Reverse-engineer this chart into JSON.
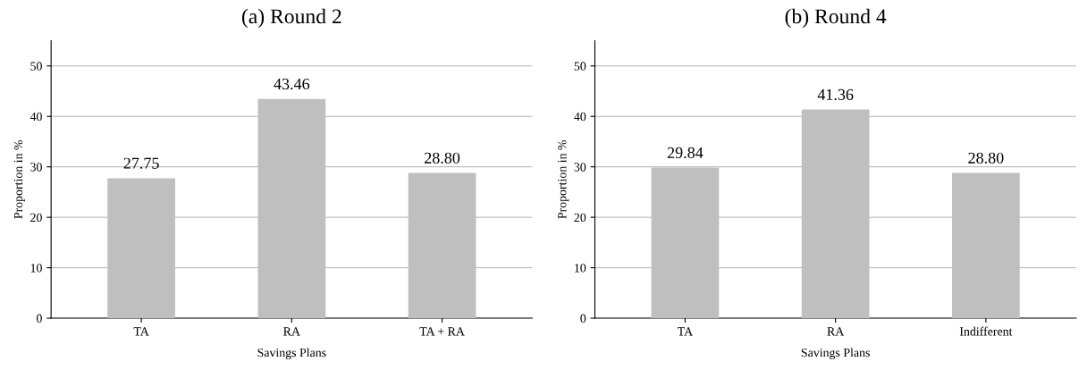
{
  "chart_data": [
    {
      "type": "bar",
      "title": "(a) Round 2",
      "xlabel": "Savings Plans",
      "ylabel": "Proportion in %",
      "categories": [
        "TA",
        "RA",
        "TA + RA"
      ],
      "values": [
        27.75,
        43.46,
        28.8
      ],
      "value_labels": [
        "27.75",
        "43.46",
        "28.80"
      ],
      "color": "#bfbfbf",
      "ylim": [
        0,
        55
      ],
      "yticks": [
        0,
        10,
        20,
        30,
        40,
        50
      ],
      "grid": "y"
    },
    {
      "type": "bar",
      "title": "(b) Round 4",
      "xlabel": "Savings Plans",
      "ylabel": "Proportion in %",
      "categories": [
        "TA",
        "RA",
        "Indifferent"
      ],
      "values": [
        29.84,
        41.36,
        28.8
      ],
      "value_labels": [
        "29.84",
        "41.36",
        "28.80"
      ],
      "color": "#bfbfbf",
      "ylim": [
        0,
        55
      ],
      "yticks": [
        0,
        10,
        20,
        30,
        40,
        50
      ],
      "grid": "y"
    }
  ]
}
